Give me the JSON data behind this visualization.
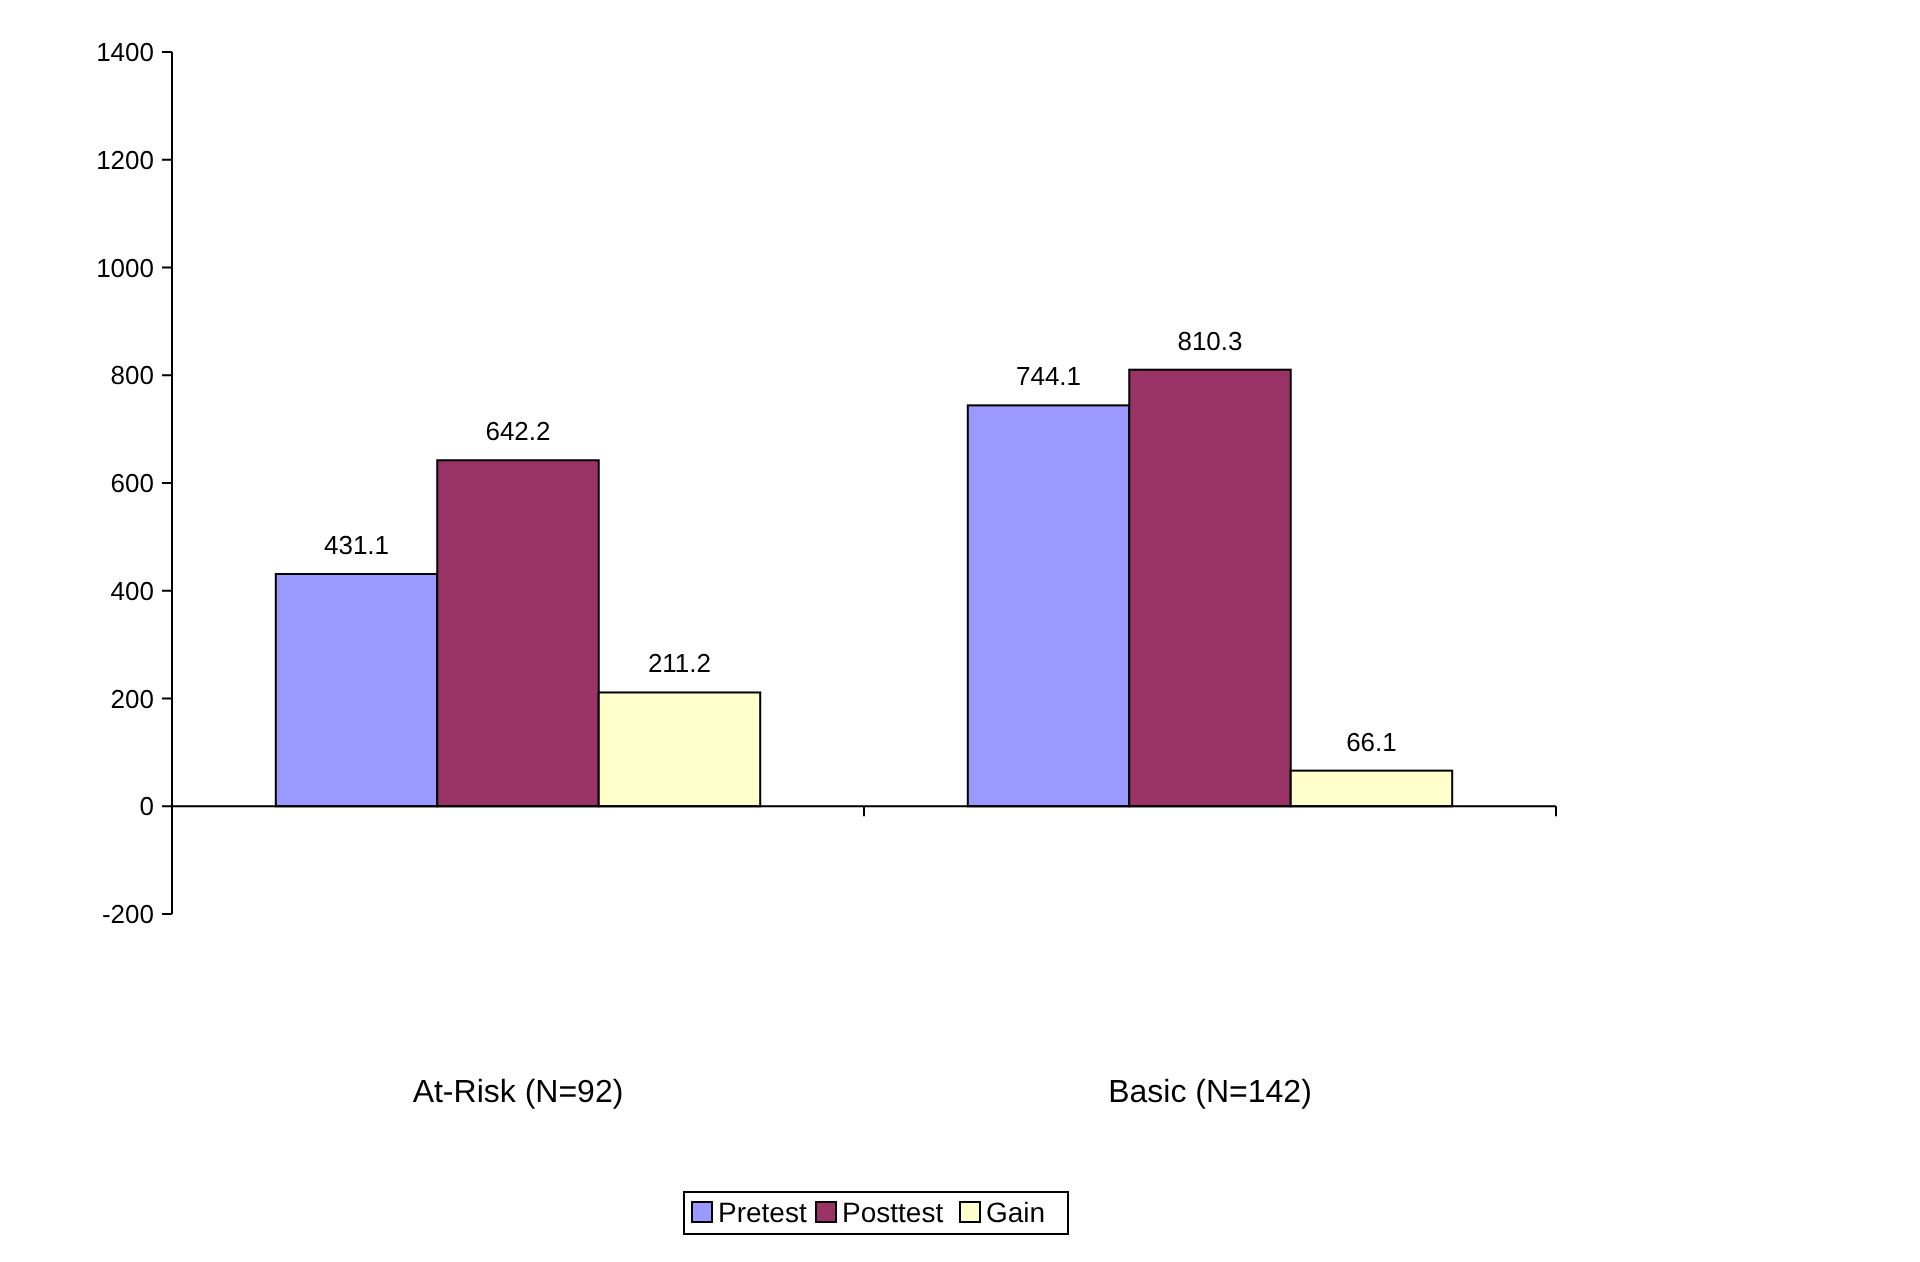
{
  "chart_data": {
    "type": "bar",
    "categories": [
      "At-Risk (N=92)",
      "Basic (N=142)"
    ],
    "series": [
      {
        "name": "Pretest",
        "color": "#9999ff",
        "values": [
          431.1,
          744.1
        ]
      },
      {
        "name": "Posttest",
        "color": "#993366",
        "values": [
          642.2,
          810.3
        ]
      },
      {
        "name": "Gain",
        "color": "#ffffcc",
        "values": [
          211.2,
          66.1
        ]
      }
    ],
    "ylim": [
      -200,
      1400
    ],
    "yticks": [
      -200,
      0,
      200,
      400,
      600,
      800,
      1000,
      1200,
      1400
    ],
    "data_labels": true,
    "grid": false,
    "legend": "bottom"
  }
}
